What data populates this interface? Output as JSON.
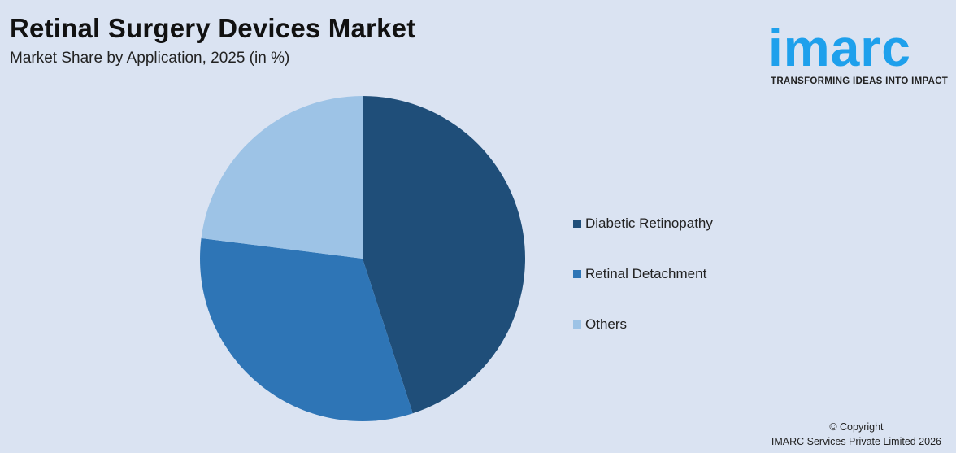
{
  "header": {
    "title": "Retinal Surgery Devices Market",
    "subtitle": "Market Share by Application, 2025 (in %)"
  },
  "logo": {
    "wordmark": "imarc",
    "tagline": "TRANSFORMING IDEAS INTO IMPACT",
    "color": "#1ea0ec"
  },
  "legend": {
    "items": [
      {
        "label": "Diabetic Retinopathy",
        "color": "#1f4e79"
      },
      {
        "label": "Retinal Detachment",
        "color": "#2e75b6"
      },
      {
        "label": "Others",
        "color": "#9dc3e6"
      }
    ]
  },
  "footer": {
    "copyright_line1": "© Copyright",
    "copyright_line2": "IMARC Services Private Limited 2026"
  },
  "chart_data": {
    "type": "pie",
    "title": "Retinal Surgery Devices Market",
    "subtitle": "Market Share by Application, 2025 (in %)",
    "categories": [
      "Diabetic Retinopathy",
      "Retinal Detachment",
      "Others"
    ],
    "values": [
      45,
      32,
      23
    ],
    "colors": [
      "#1f4e79",
      "#2e75b6",
      "#9dc3e6"
    ],
    "start_angle_deg": 0,
    "direction": "clockwise",
    "legend_position": "right",
    "data_labels": false
  }
}
